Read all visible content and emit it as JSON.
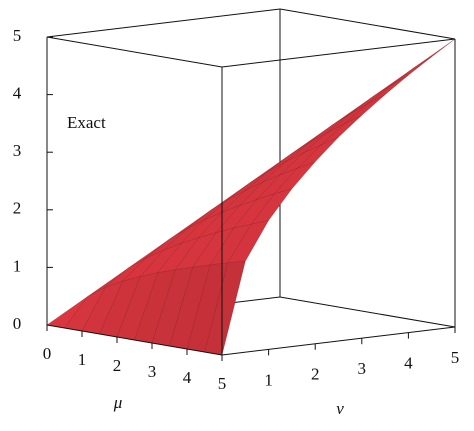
{
  "chart_data": {
    "type": "surface",
    "annotation": "Exact",
    "xlabel": "μ",
    "ylabel": "ν",
    "color": "#c8323a",
    "xlim": [
      0,
      5
    ],
    "xticks": [
      0,
      1,
      2,
      3,
      4,
      5
    ],
    "ylim": [
      0,
      5
    ],
    "yticks": [
      1,
      2,
      3,
      4,
      5
    ],
    "zlim": [
      0,
      5
    ],
    "zticks": [
      0,
      1,
      2,
      3,
      4,
      5
    ],
    "x": [
      0,
      0.5,
      1,
      1.5,
      2,
      2.5,
      3,
      3.5,
      4,
      4.5,
      5
    ],
    "y": [
      0,
      0.5,
      1,
      1.5,
      2,
      2.5,
      3,
      3.5,
      4,
      4.5,
      5
    ],
    "z": [
      [
        0,
        null,
        null,
        null,
        null,
        null,
        null,
        null,
        null,
        null,
        null
      ],
      [
        0,
        0.5,
        null,
        null,
        null,
        null,
        null,
        null,
        null,
        null,
        null
      ],
      [
        0,
        0.71,
        1,
        null,
        null,
        null,
        null,
        null,
        null,
        null,
        null
      ],
      [
        0,
        0.87,
        1.22,
        1.5,
        null,
        null,
        null,
        null,
        null,
        null,
        null
      ],
      [
        0,
        1,
        1.41,
        1.73,
        2,
        null,
        null,
        null,
        null,
        null,
        null
      ],
      [
        0,
        1.12,
        1.58,
        1.94,
        2.24,
        2.5,
        null,
        null,
        null,
        null,
        null
      ],
      [
        0,
        1.22,
        1.73,
        2.12,
        2.45,
        2.74,
        3,
        null,
        null,
        null,
        null
      ],
      [
        0,
        1.32,
        1.87,
        2.29,
        2.65,
        2.96,
        3.24,
        3.5,
        null,
        null,
        null
      ],
      [
        0,
        1.41,
        2,
        2.45,
        2.83,
        3.16,
        3.46,
        3.74,
        4,
        null,
        null
      ],
      [
        0,
        1.5,
        2.12,
        2.6,
        3,
        3.35,
        3.67,
        3.97,
        4.24,
        4.5,
        null
      ],
      [
        0,
        1.58,
        2.24,
        2.74,
        3.16,
        3.54,
        3.87,
        4.18,
        4.47,
        4.74,
        5
      ]
    ]
  }
}
